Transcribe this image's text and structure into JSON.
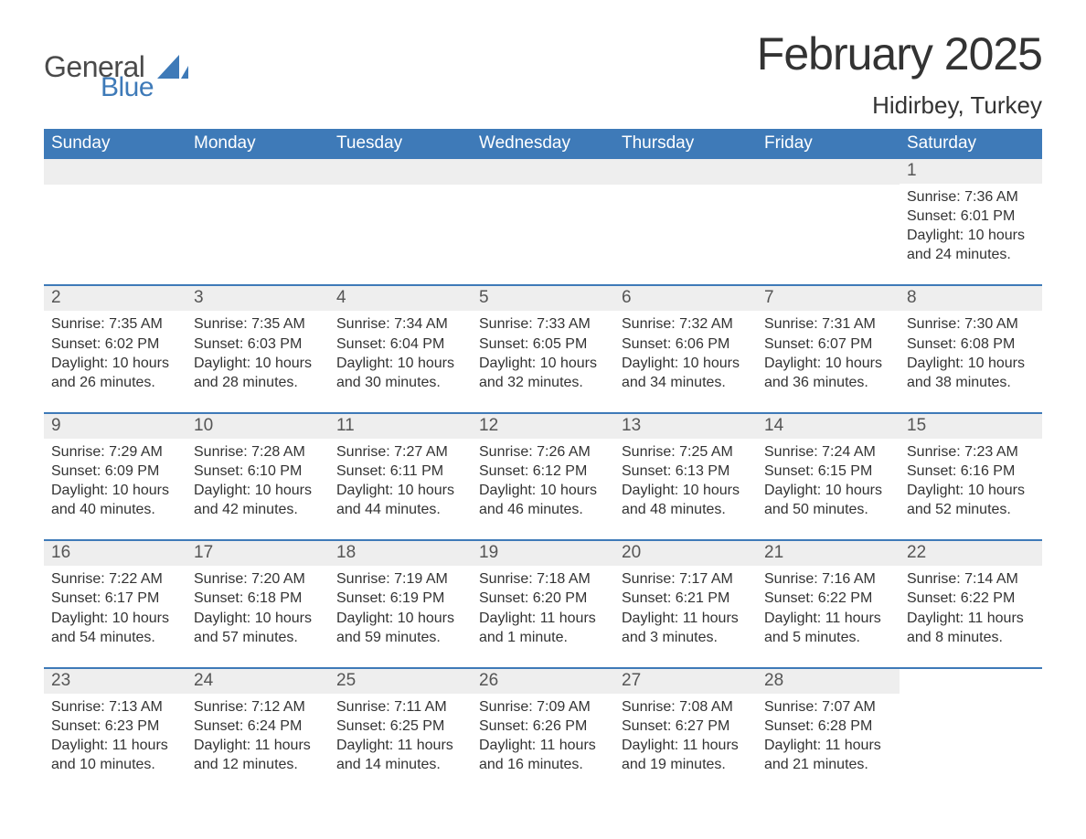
{
  "logo": {
    "top": "General",
    "bottom": "Blue",
    "shape_color": "#3e7ab8"
  },
  "title": "February 2025",
  "location": "Hidirbey, Turkey",
  "colors": {
    "header_bg": "#3e7ab8",
    "header_text": "#ffffff",
    "daynum_bg": "#eeeeee",
    "border": "#3e7ab8",
    "body_text": "#333333",
    "background": "#ffffff"
  },
  "typography": {
    "title_fontsize": 50,
    "location_fontsize": 26,
    "header_fontsize": 19,
    "daynum_fontsize": 19,
    "body_fontsize": 16,
    "font_family": "Segoe UI"
  },
  "weekday_labels": [
    "Sunday",
    "Monday",
    "Tuesday",
    "Wednesday",
    "Thursday",
    "Friday",
    "Saturday"
  ],
  "weeks": [
    [
      {
        "empty": true
      },
      {
        "empty": true
      },
      {
        "empty": true
      },
      {
        "empty": true
      },
      {
        "empty": true
      },
      {
        "empty": true
      },
      {
        "day": "1",
        "sunrise": "Sunrise: 7:36 AM",
        "sunset": "Sunset: 6:01 PM",
        "daylight": "Daylight: 10 hours and 24 minutes."
      }
    ],
    [
      {
        "day": "2",
        "sunrise": "Sunrise: 7:35 AM",
        "sunset": "Sunset: 6:02 PM",
        "daylight": "Daylight: 10 hours and 26 minutes."
      },
      {
        "day": "3",
        "sunrise": "Sunrise: 7:35 AM",
        "sunset": "Sunset: 6:03 PM",
        "daylight": "Daylight: 10 hours and 28 minutes."
      },
      {
        "day": "4",
        "sunrise": "Sunrise: 7:34 AM",
        "sunset": "Sunset: 6:04 PM",
        "daylight": "Daylight: 10 hours and 30 minutes."
      },
      {
        "day": "5",
        "sunrise": "Sunrise: 7:33 AM",
        "sunset": "Sunset: 6:05 PM",
        "daylight": "Daylight: 10 hours and 32 minutes."
      },
      {
        "day": "6",
        "sunrise": "Sunrise: 7:32 AM",
        "sunset": "Sunset: 6:06 PM",
        "daylight": "Daylight: 10 hours and 34 minutes."
      },
      {
        "day": "7",
        "sunrise": "Sunrise: 7:31 AM",
        "sunset": "Sunset: 6:07 PM",
        "daylight": "Daylight: 10 hours and 36 minutes."
      },
      {
        "day": "8",
        "sunrise": "Sunrise: 7:30 AM",
        "sunset": "Sunset: 6:08 PM",
        "daylight": "Daylight: 10 hours and 38 minutes."
      }
    ],
    [
      {
        "day": "9",
        "sunrise": "Sunrise: 7:29 AM",
        "sunset": "Sunset: 6:09 PM",
        "daylight": "Daylight: 10 hours and 40 minutes."
      },
      {
        "day": "10",
        "sunrise": "Sunrise: 7:28 AM",
        "sunset": "Sunset: 6:10 PM",
        "daylight": "Daylight: 10 hours and 42 minutes."
      },
      {
        "day": "11",
        "sunrise": "Sunrise: 7:27 AM",
        "sunset": "Sunset: 6:11 PM",
        "daylight": "Daylight: 10 hours and 44 minutes."
      },
      {
        "day": "12",
        "sunrise": "Sunrise: 7:26 AM",
        "sunset": "Sunset: 6:12 PM",
        "daylight": "Daylight: 10 hours and 46 minutes."
      },
      {
        "day": "13",
        "sunrise": "Sunrise: 7:25 AM",
        "sunset": "Sunset: 6:13 PM",
        "daylight": "Daylight: 10 hours and 48 minutes."
      },
      {
        "day": "14",
        "sunrise": "Sunrise: 7:24 AM",
        "sunset": "Sunset: 6:15 PM",
        "daylight": "Daylight: 10 hours and 50 minutes."
      },
      {
        "day": "15",
        "sunrise": "Sunrise: 7:23 AM",
        "sunset": "Sunset: 6:16 PM",
        "daylight": "Daylight: 10 hours and 52 minutes."
      }
    ],
    [
      {
        "day": "16",
        "sunrise": "Sunrise: 7:22 AM",
        "sunset": "Sunset: 6:17 PM",
        "daylight": "Daylight: 10 hours and 54 minutes."
      },
      {
        "day": "17",
        "sunrise": "Sunrise: 7:20 AM",
        "sunset": "Sunset: 6:18 PM",
        "daylight": "Daylight: 10 hours and 57 minutes."
      },
      {
        "day": "18",
        "sunrise": "Sunrise: 7:19 AM",
        "sunset": "Sunset: 6:19 PM",
        "daylight": "Daylight: 10 hours and 59 minutes."
      },
      {
        "day": "19",
        "sunrise": "Sunrise: 7:18 AM",
        "sunset": "Sunset: 6:20 PM",
        "daylight": "Daylight: 11 hours and 1 minute."
      },
      {
        "day": "20",
        "sunrise": "Sunrise: 7:17 AM",
        "sunset": "Sunset: 6:21 PM",
        "daylight": "Daylight: 11 hours and 3 minutes."
      },
      {
        "day": "21",
        "sunrise": "Sunrise: 7:16 AM",
        "sunset": "Sunset: 6:22 PM",
        "daylight": "Daylight: 11 hours and 5 minutes."
      },
      {
        "day": "22",
        "sunrise": "Sunrise: 7:14 AM",
        "sunset": "Sunset: 6:22 PM",
        "daylight": "Daylight: 11 hours and 8 minutes."
      }
    ],
    [
      {
        "day": "23",
        "sunrise": "Sunrise: 7:13 AM",
        "sunset": "Sunset: 6:23 PM",
        "daylight": "Daylight: 11 hours and 10 minutes."
      },
      {
        "day": "24",
        "sunrise": "Sunrise: 7:12 AM",
        "sunset": "Sunset: 6:24 PM",
        "daylight": "Daylight: 11 hours and 12 minutes."
      },
      {
        "day": "25",
        "sunrise": "Sunrise: 7:11 AM",
        "sunset": "Sunset: 6:25 PM",
        "daylight": "Daylight: 11 hours and 14 minutes."
      },
      {
        "day": "26",
        "sunrise": "Sunrise: 7:09 AM",
        "sunset": "Sunset: 6:26 PM",
        "daylight": "Daylight: 11 hours and 16 minutes."
      },
      {
        "day": "27",
        "sunrise": "Sunrise: 7:08 AM",
        "sunset": "Sunset: 6:27 PM",
        "daylight": "Daylight: 11 hours and 19 minutes."
      },
      {
        "day": "28",
        "sunrise": "Sunrise: 7:07 AM",
        "sunset": "Sunset: 6:28 PM",
        "daylight": "Daylight: 11 hours and 21 minutes."
      },
      {
        "empty": true,
        "no_bar": true
      }
    ]
  ]
}
